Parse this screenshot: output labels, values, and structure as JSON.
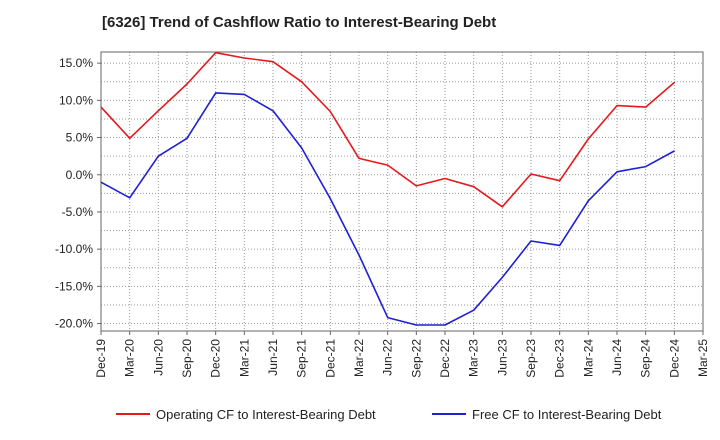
{
  "chart_data": {
    "type": "line",
    "title": "[6326]  Trend of Cashflow Ratio to Interest-Bearing Debt",
    "xlabel": "",
    "ylabel": "",
    "x": [
      "Dec-19",
      "Mar-20",
      "Jun-20",
      "Sep-20",
      "Dec-20",
      "Mar-21",
      "Jun-21",
      "Sep-21",
      "Dec-21",
      "Mar-22",
      "Jun-22",
      "Sep-22",
      "Dec-22",
      "Mar-23",
      "Jun-23",
      "Sep-23",
      "Dec-23",
      "Mar-24",
      "Jun-24",
      "Sep-24",
      "Dec-24",
      "Mar-25"
    ],
    "ylim": [
      -21,
      16.5
    ],
    "yticks": [
      15,
      10,
      5,
      0,
      -5,
      -10,
      -15,
      -20
    ],
    "ytick_labels": [
      "15.0%",
      "10.0%",
      "5.0%",
      "0.0%",
      "-5.0%",
      "-10.0%",
      "-15.0%",
      "-20.0%"
    ],
    "grid": true,
    "legend_position": "bottom",
    "series": [
      {
        "name": "Operating CF to Interest-Bearing Debt",
        "color": "#e31a1c",
        "values": [
          9.1,
          4.9,
          8.6,
          12.2,
          16.4,
          15.7,
          15.2,
          12.5,
          8.5,
          2.2,
          1.3,
          -1.5,
          -0.5,
          -1.6,
          -4.3,
          0.1,
          -0.8,
          4.8,
          9.3,
          9.1,
          12.4,
          null
        ]
      },
      {
        "name": "Free CF to Interest-Bearing Debt",
        "color": "#1f1fd6",
        "values": [
          -1.0,
          -3.1,
          2.5,
          4.9,
          11.0,
          10.8,
          8.6,
          3.6,
          -3.2,
          -10.8,
          -19.2,
          -20.2,
          -20.2,
          -18.2,
          -13.8,
          -8.9,
          -9.5,
          -3.5,
          0.4,
          1.1,
          3.2,
          null
        ]
      }
    ]
  }
}
